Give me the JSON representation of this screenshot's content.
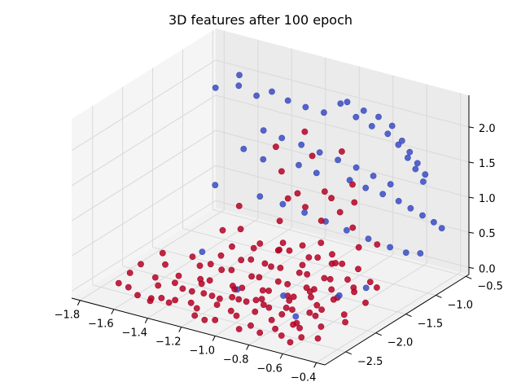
{
  "chart_data": {
    "type": "scatter",
    "projection": "3d",
    "title": "3D features after 100 epoch",
    "xlabel": "",
    "ylabel": "",
    "zlabel": "",
    "grid": true,
    "xlim": [
      -1.85,
      -0.35
    ],
    "ylim": [
      -2.85,
      -0.45
    ],
    "zlim": [
      -0.1,
      2.45
    ],
    "x_ticks": [
      "−1.8",
      "−1.6",
      "−1.4",
      "−1.2",
      "−1.0",
      "−0.8",
      "−0.6",
      "−0.4"
    ],
    "y_ticks": [
      "−2.5",
      "−2.0",
      "−1.5",
      "−1.0",
      "−0.5"
    ],
    "z_ticks": [
      "0.0",
      "0.5",
      "1.0",
      "1.5",
      "2.0"
    ],
    "colors": {
      "class_red": "#b40426",
      "class_blue": "#3b4cc0"
    },
    "series": [
      {
        "color": "#b40426",
        "points": [
          [
            -1.52,
            -2.68,
            0.06
          ],
          [
            -1.41,
            -2.59,
            0.04
          ],
          [
            -1.33,
            -2.69,
            0.08
          ],
          [
            -1.26,
            -2.52,
            0.03
          ],
          [
            -1.19,
            -2.62,
            0.05
          ],
          [
            -1.12,
            -2.48,
            0.07
          ],
          [
            -1.05,
            -2.71,
            0.02
          ],
          [
            -0.98,
            -2.55,
            0.04
          ],
          [
            -0.92,
            -2.41,
            0.06
          ],
          [
            -0.86,
            -2.65,
            0.03
          ],
          [
            -0.8,
            -2.47,
            0.05
          ],
          [
            -0.74,
            -2.58,
            0.02
          ],
          [
            -0.68,
            -2.39,
            0.04
          ],
          [
            -0.62,
            -2.51,
            0.07
          ],
          [
            -0.57,
            -2.62,
            0.03
          ],
          [
            -1.48,
            -2.45,
            0.1
          ],
          [
            -1.37,
            -2.35,
            0.07
          ],
          [
            -1.29,
            -2.42,
            0.12
          ],
          [
            -1.21,
            -2.31,
            0.05
          ],
          [
            -1.14,
            -2.38,
            0.09
          ],
          [
            -1.07,
            -2.26,
            0.06
          ],
          [
            -1.0,
            -2.33,
            0.11
          ],
          [
            -0.94,
            -2.21,
            0.04
          ],
          [
            -0.88,
            -2.29,
            0.08
          ],
          [
            -0.82,
            -2.17,
            0.05
          ],
          [
            -0.76,
            -2.24,
            0.1
          ],
          [
            -0.7,
            -2.12,
            0.03
          ],
          [
            -0.64,
            -2.19,
            0.06
          ],
          [
            -1.44,
            -2.22,
            0.14
          ],
          [
            -1.35,
            -2.11,
            0.09
          ],
          [
            -1.27,
            -2.18,
            0.16
          ],
          [
            -1.18,
            -2.05,
            0.07
          ],
          [
            -1.1,
            -2.12,
            0.13
          ],
          [
            -1.02,
            -2.0,
            0.08
          ],
          [
            -0.96,
            -2.07,
            0.15
          ],
          [
            -0.89,
            -1.95,
            0.06
          ],
          [
            -0.83,
            -2.02,
            0.12
          ],
          [
            -0.77,
            -1.9,
            0.09
          ],
          [
            -0.71,
            -1.97,
            0.05
          ],
          [
            -0.65,
            -1.86,
            0.11
          ],
          [
            -1.4,
            -1.98,
            0.18
          ],
          [
            -1.31,
            -1.87,
            0.12
          ],
          [
            -1.23,
            -1.93,
            0.2
          ],
          [
            -1.15,
            -1.82,
            0.1
          ],
          [
            -1.08,
            -1.89,
            0.17
          ],
          [
            -1.01,
            -1.77,
            0.09
          ],
          [
            -0.93,
            -1.84,
            0.14
          ],
          [
            -0.86,
            -1.72,
            0.07
          ],
          [
            -0.79,
            -1.79,
            0.13
          ],
          [
            -0.73,
            -1.67,
            0.1
          ],
          [
            -0.67,
            -1.74,
            0.06
          ],
          [
            -0.61,
            -1.63,
            0.12
          ],
          [
            -1.36,
            -1.74,
            0.22
          ],
          [
            -1.28,
            -1.63,
            0.15
          ],
          [
            -1.2,
            -1.69,
            0.24
          ],
          [
            -1.12,
            -1.58,
            0.13
          ],
          [
            -1.04,
            -1.65,
            0.2
          ],
          [
            -0.97,
            -1.53,
            0.11
          ],
          [
            -0.9,
            -1.6,
            0.17
          ],
          [
            -0.84,
            -1.48,
            0.09
          ],
          [
            -0.78,
            -1.55,
            0.15
          ],
          [
            -0.72,
            -1.43,
            0.12
          ],
          [
            -0.66,
            -1.5,
            0.08
          ],
          [
            -0.6,
            -1.39,
            0.14
          ],
          [
            -1.25,
            -1.4,
            0.28
          ],
          [
            -1.17,
            -1.32,
            0.19
          ],
          [
            -1.09,
            -1.36,
            0.26
          ],
          [
            -1.01,
            -1.26,
            0.16
          ],
          [
            -0.94,
            -1.31,
            0.23
          ],
          [
            -0.87,
            -1.21,
            0.14
          ],
          [
            -0.81,
            -1.27,
            0.2
          ],
          [
            -0.75,
            -1.17,
            0.11
          ],
          [
            -1.55,
            -2.3,
            0.09
          ],
          [
            -1.62,
            -2.55,
            0.04
          ],
          [
            -1.58,
            -2.05,
            0.12
          ],
          [
            -1.5,
            -1.82,
            0.16
          ],
          [
            -0.55,
            -2.35,
            0.05
          ],
          [
            -0.52,
            -2.05,
            0.08
          ],
          [
            -0.5,
            -1.75,
            0.1
          ],
          [
            -0.54,
            -1.45,
            0.13
          ],
          [
            -1.46,
            -2.62,
            0.02
          ],
          [
            -1.16,
            -2.74,
            0.03
          ],
          [
            -0.89,
            -2.76,
            0.02
          ],
          [
            -0.66,
            -2.7,
            0.04
          ],
          [
            -1.3,
            -2.08,
            0.32
          ],
          [
            -1.05,
            -1.88,
            0.38
          ],
          [
            -0.92,
            -1.62,
            0.3
          ],
          [
            -1.18,
            -1.7,
            0.42
          ],
          [
            -0.98,
            -1.45,
            0.45
          ],
          [
            -0.84,
            -1.35,
            0.36
          ],
          [
            -1.1,
            -1.5,
            0.34
          ],
          [
            -0.76,
            -1.58,
            0.4
          ],
          [
            -1.22,
            -1.95,
            0.55
          ],
          [
            -1.0,
            -1.72,
            0.62
          ],
          [
            -0.86,
            -1.48,
            0.58
          ],
          [
            -1.14,
            -1.38,
            0.66
          ],
          [
            -0.94,
            -1.25,
            0.72
          ],
          [
            -0.8,
            -1.12,
            0.64
          ],
          [
            -1.06,
            -1.18,
            0.8
          ],
          [
            -0.9,
            -1.05,
            0.76
          ],
          [
            -1.32,
            -1.55,
            0.85
          ],
          [
            -1.12,
            -1.3,
            0.95
          ],
          [
            -0.98,
            -1.08,
            1.02
          ],
          [
            -0.84,
            -0.98,
            0.9
          ],
          [
            -1.02,
            -1.42,
            1.15
          ],
          [
            -0.88,
            -1.25,
            1.08
          ],
          [
            -1.2,
            -1.18,
            1.22
          ],
          [
            -0.78,
            -1.18,
            1.3
          ],
          [
            -1.28,
            -1.05,
            1.45
          ],
          [
            -1.1,
            -0.95,
            1.38
          ],
          [
            -0.95,
            -0.88,
            1.5
          ],
          [
            -1.18,
            -0.85,
            1.62
          ],
          [
            -1.24,
            -1.75,
            0.68
          ],
          [
            -1.4,
            -1.6,
            0.48
          ],
          [
            -0.7,
            -1.3,
            0.52
          ],
          [
            -0.68,
            -1.05,
            0.44
          ],
          [
            -1.08,
            -2.3,
            0.22
          ],
          [
            -0.9,
            -2.45,
            0.26
          ],
          [
            -1.24,
            -2.4,
            0.25
          ],
          [
            -0.74,
            -2.0,
            0.24
          ],
          [
            -1.38,
            -2.45,
            0.2
          ],
          [
            -0.6,
            -2.2,
            0.18
          ],
          [
            -1.6,
            -2.4,
            0.3
          ],
          [
            -1.56,
            -2.15,
            0.35
          ],
          [
            -1.66,
            -2.6,
            0.1
          ],
          [
            -1.7,
            -2.3,
            0.06
          ],
          [
            -0.48,
            -2.6,
            0.06
          ],
          [
            -0.46,
            -2.2,
            0.09
          ],
          [
            -1.13,
            -2.2,
            0.02
          ],
          [
            -0.99,
            -2.1,
            0.03
          ],
          [
            -0.87,
            -1.98,
            0.02
          ],
          [
            -1.27,
            -2.28,
            0.03
          ],
          [
            -1.03,
            -2.5,
            0.05
          ],
          [
            -0.8,
            -2.3,
            0.04
          ],
          [
            -0.68,
            -2.45,
            0.05
          ],
          [
            -1.34,
            -2.56,
            0.04
          ],
          [
            -1.42,
            -2.75,
            0.08
          ],
          [
            -1.08,
            -2.8,
            0.05
          ],
          [
            -0.76,
            -2.78,
            0.06
          ],
          [
            -0.58,
            -2.78,
            0.04
          ]
        ]
      },
      {
        "color": "#3b4cc0",
        "points": [
          [
            -1.62,
            -1.1,
            2.1
          ],
          [
            -1.5,
            -1.05,
            2.18
          ],
          [
            -1.42,
            -0.98,
            2.05
          ],
          [
            -1.55,
            -0.9,
            2.22
          ],
          [
            -1.35,
            -0.92,
            2.12
          ],
          [
            -1.28,
            -0.85,
            2.0
          ],
          [
            -1.2,
            -0.78,
            1.92
          ],
          [
            -1.12,
            -0.7,
            1.85
          ],
          [
            -1.05,
            -0.62,
            1.98
          ],
          [
            -0.98,
            -0.56,
            1.8
          ],
          [
            -0.9,
            -0.52,
            1.7
          ],
          [
            -0.82,
            -0.48,
            1.62
          ],
          [
            -0.75,
            -0.5,
            1.52
          ],
          [
            -0.68,
            -0.54,
            1.4
          ],
          [
            -0.62,
            -0.58,
            1.3
          ],
          [
            -0.56,
            -0.62,
            1.18
          ],
          [
            -1.3,
            -1.2,
            1.75
          ],
          [
            -1.22,
            -1.12,
            1.65
          ],
          [
            -1.14,
            -1.02,
            1.55
          ],
          [
            -1.06,
            -0.94,
            1.45
          ],
          [
            -0.98,
            -0.86,
            1.35
          ],
          [
            -0.9,
            -0.78,
            1.25
          ],
          [
            -0.82,
            -0.72,
            1.15
          ],
          [
            -0.74,
            -0.66,
            1.05
          ],
          [
            -1.0,
            -0.65,
            2.05
          ],
          [
            -0.92,
            -0.6,
            1.95
          ],
          [
            -0.85,
            -0.55,
            1.88
          ],
          [
            -0.78,
            -0.52,
            1.78
          ],
          [
            -0.7,
            -0.58,
            1.65
          ],
          [
            -0.64,
            -0.62,
            1.55
          ],
          [
            -0.58,
            -0.66,
            1.45
          ],
          [
            -0.52,
            -0.7,
            1.35
          ],
          [
            -1.4,
            -1.25,
            1.45
          ],
          [
            -1.32,
            -1.15,
            1.3
          ],
          [
            -1.18,
            -0.95,
            1.2
          ],
          [
            -1.1,
            -0.88,
            1.1
          ],
          [
            -0.96,
            -0.72,
            1.0
          ],
          [
            -0.88,
            -0.68,
            0.92
          ],
          [
            -0.8,
            -0.62,
            0.85
          ],
          [
            -0.72,
            -0.58,
            0.78
          ],
          [
            -0.66,
            -0.55,
            0.7
          ],
          [
            -0.6,
            -0.52,
            0.62
          ],
          [
            -0.54,
            -0.5,
            0.55
          ],
          [
            -0.5,
            -0.48,
            0.48
          ],
          [
            -1.25,
            -1.4,
            0.95
          ],
          [
            -1.15,
            -1.3,
            0.85
          ],
          [
            -1.05,
            -1.22,
            0.75
          ],
          [
            -0.95,
            -1.15,
            0.65
          ],
          [
            -0.85,
            -1.08,
            0.55
          ],
          [
            -0.75,
            -1.0,
            0.45
          ],
          [
            -0.65,
            -0.92,
            0.35
          ],
          [
            -0.58,
            -0.85,
            0.28
          ],
          [
            -1.45,
            -1.8,
            0.25
          ],
          [
            -1.1,
            -2.2,
            0.15
          ],
          [
            -0.88,
            -2.05,
            0.12
          ],
          [
            -0.7,
            -2.35,
            0.1
          ],
          [
            -0.62,
            -1.85,
            0.18
          ],
          [
            -0.55,
            -1.6,
            0.2
          ],
          [
            -1.48,
            -1.5,
            1.02
          ],
          [
            -0.46,
            -0.95,
            0.4
          ]
        ]
      }
    ]
  }
}
